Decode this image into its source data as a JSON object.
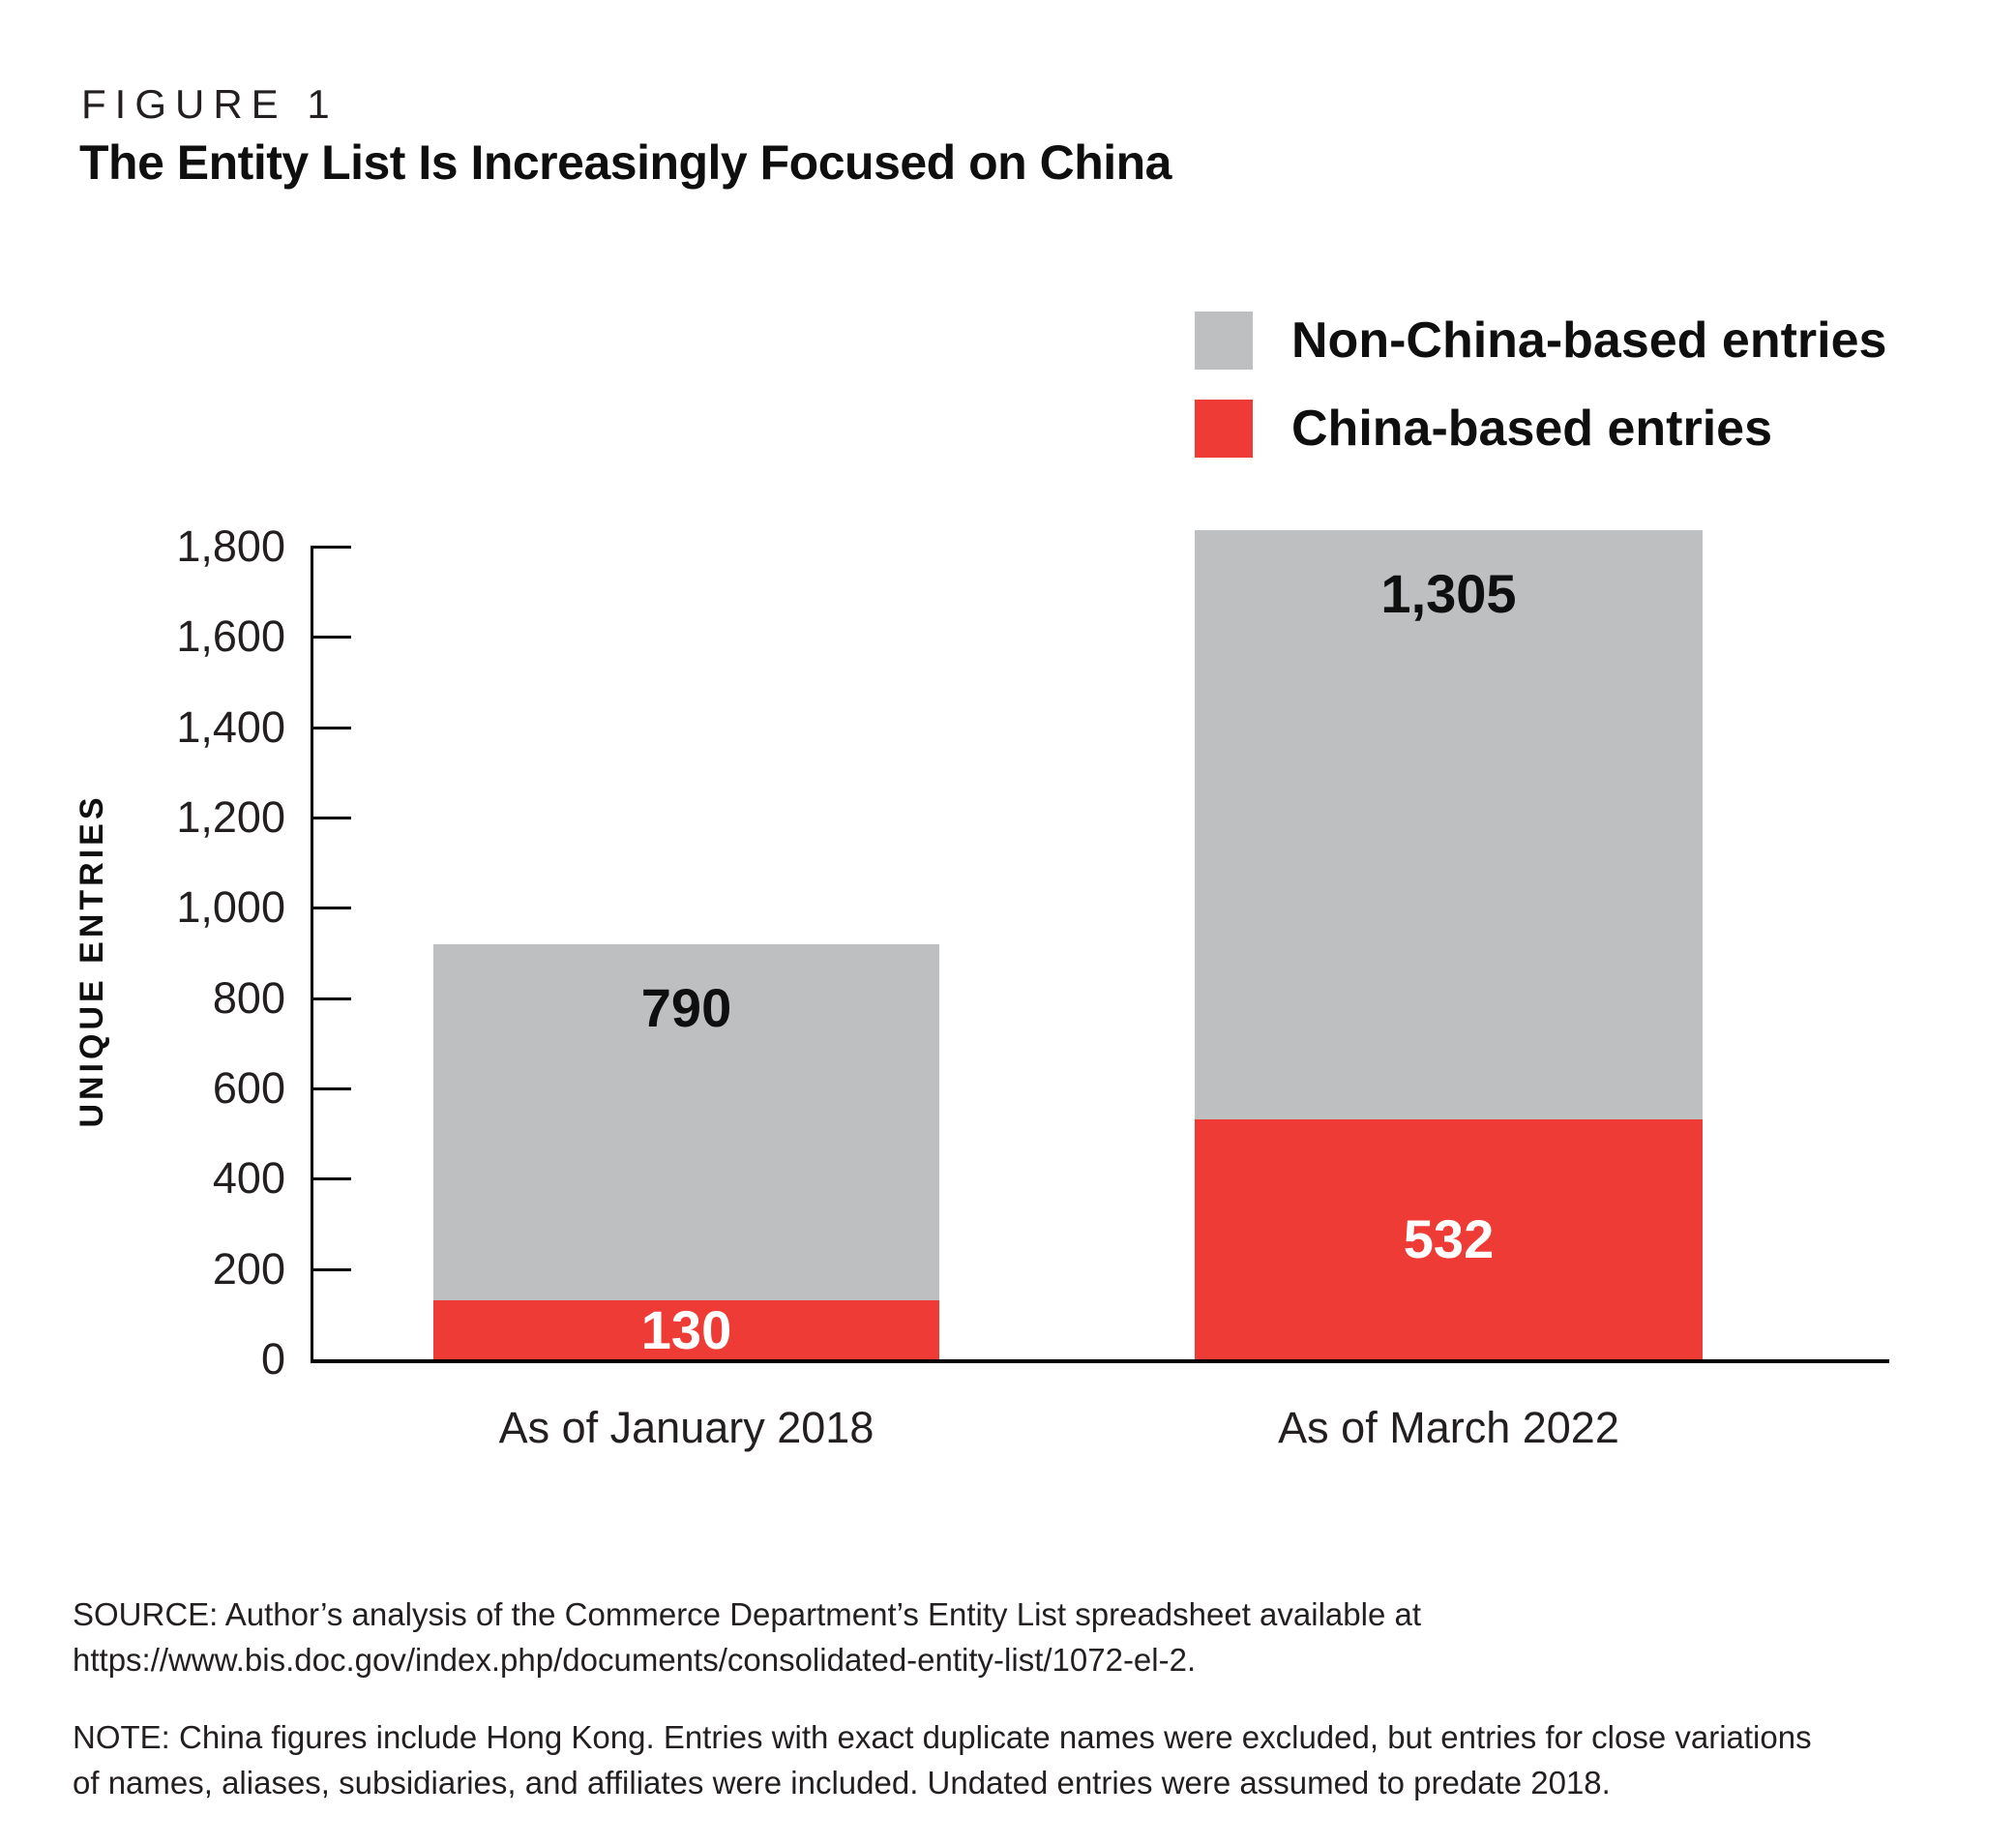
{
  "figure_label": "FIGURE 1",
  "title": "The Entity List Is Increasingly Focused on China",
  "legend": {
    "position": "top-right",
    "items": [
      {
        "label": "Non-China-based entries",
        "color": "#bebfc1"
      },
      {
        "label": "China-based entries",
        "color": "#ee3b35"
      }
    ]
  },
  "y_axis": {
    "title": "UNIQUE ENTRIES",
    "ticks": [
      "1,800",
      "1,600",
      "1,400",
      "1,200",
      "1,000",
      "800",
      "600",
      "400",
      "200",
      "0"
    ]
  },
  "chart_data": {
    "type": "bar",
    "stacked": true,
    "title": "The Entity List Is Increasingly Focused on China",
    "categories": [
      "As of January 2018",
      "As of March 2022"
    ],
    "series": [
      {
        "name": "China-based entries",
        "color": "#ee3b35",
        "values": [
          130,
          532
        ],
        "labels": [
          "130",
          "532"
        ]
      },
      {
        "name": "Non-China-based entries",
        "color": "#bebfc1",
        "values": [
          790,
          1305
        ],
        "labels": [
          "790",
          "1,305"
        ]
      }
    ],
    "totals": [
      920,
      1837
    ],
    "ylabel": "UNIQUE ENTRIES",
    "ylim": [
      0,
      1800
    ],
    "ytick_step": 200,
    "grid": false,
    "legend_position": "top-right",
    "value_label_colors": {
      "china": "#ffffff",
      "non_china": "#0f0f0f"
    }
  },
  "source": {
    "line1": "SOURCE: Author’s analysis of the Commerce Department’s Entity List spreadsheet available at",
    "line2": "https://www.bis.doc.gov/index.php/documents/consolidated-entity-list/1072-el-2."
  },
  "note": {
    "line1": "NOTE: China figures include Hong Kong. Entries with exact duplicate names were excluded, but entries for close variations",
    "line2": "of names, aliases, subsidiaries, and affiliates were included. Undated entries were assumed to predate 2018."
  }
}
